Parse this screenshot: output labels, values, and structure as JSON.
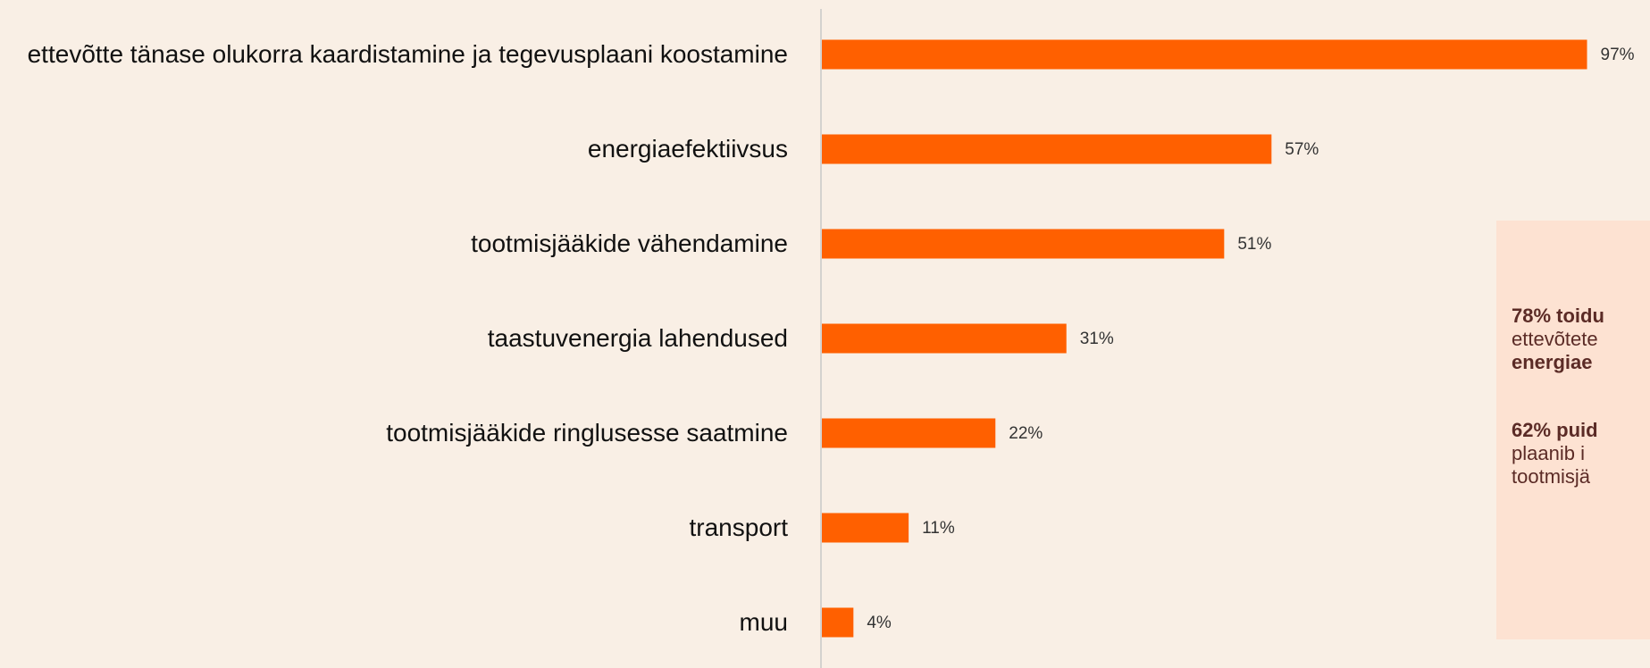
{
  "chart_data": {
    "type": "bar",
    "orientation": "horizontal",
    "categories": [
      "ettevõtte tänase olukorra kaardistamine ja tegevusplaani koostamine",
      "energiaefektiivsus",
      "tootmisjääkide vähendamine",
      "taastuvenergia lahendused",
      "tootmisjääkide ringlusesse saatmine",
      "transport",
      "muu"
    ],
    "values": [
      97,
      57,
      51,
      31,
      22,
      11,
      4
    ],
    "value_labels": [
      "97%",
      "57%",
      "51%",
      "31%",
      "22%",
      "11%",
      "4%"
    ],
    "color": "#ff6000",
    "xlim": [
      0,
      100
    ],
    "annotations": [
      [
        "78% toidu",
        "ettevõtete",
        "energiae"
      ],
      [
        "62% puid",
        "plaanib i",
        "tootmisjä"
      ]
    ]
  }
}
